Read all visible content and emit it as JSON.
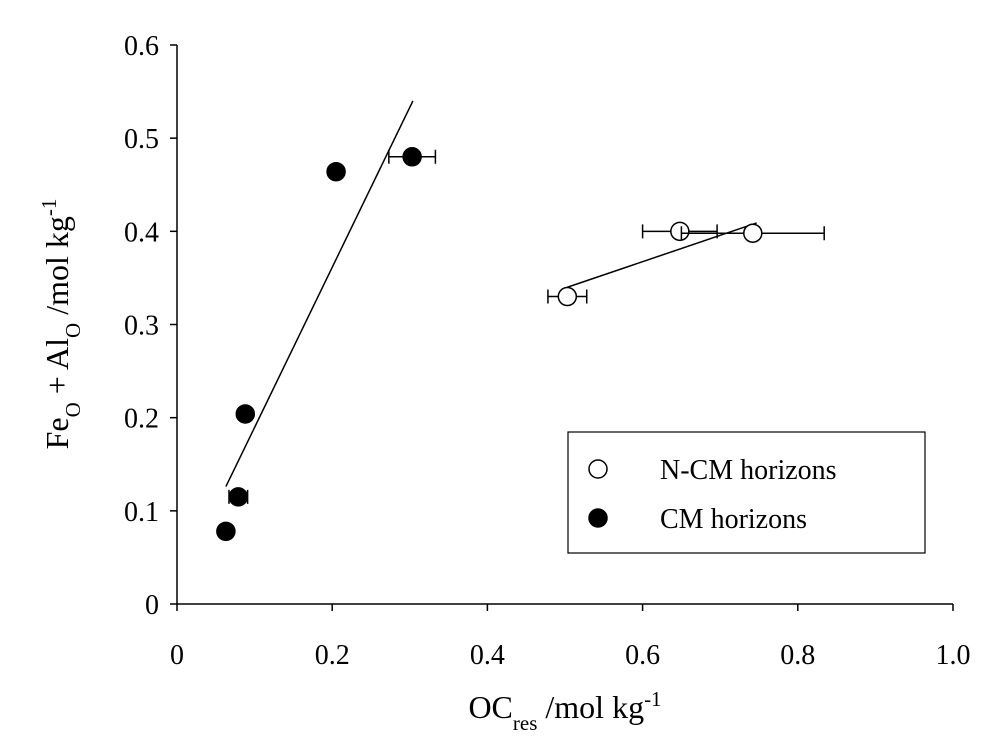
{
  "chart_data": {
    "type": "scatter",
    "xlabel": [
      "OC",
      "res",
      " /mol kg",
      "-1"
    ],
    "xlabel_shifts": [
      "base",
      "sub",
      "base",
      "super"
    ],
    "ylabel": [
      "Fe",
      "O",
      " + Al",
      "O",
      " /mol kg",
      "-1"
    ],
    "ylabel_shifts": [
      "base",
      "sub",
      "base",
      "sub",
      "base",
      "super"
    ],
    "xlim": [
      0,
      1
    ],
    "xticks": [
      0,
      0.2,
      0.4,
      0.6,
      0.8,
      {
        "value": 1,
        "label": "1.0"
      }
    ],
    "ylim": [
      0,
      0.6
    ],
    "yticks": [
      0,
      0.1,
      0.2,
      0.3,
      0.4,
      0.5,
      0.6
    ],
    "grid": false,
    "legend": "lower right",
    "series": [
      {
        "name": "N-CM horizons",
        "color": "#000000",
        "marker_fill": "#ffffff",
        "x": [
          0.503,
          0.648,
          0.742
        ],
        "values": [
          0.33,
          0.4,
          0.398
        ],
        "xerr": [
          0.025,
          0.048,
          0.092
        ],
        "fit": {
          "x": [
            0.503,
            0.747
          ],
          "y": [
            0.34,
            0.409
          ]
        }
      },
      {
        "name": "CM horizons",
        "color": "#000000",
        "marker_fill": "#000000",
        "x": [
          0.063,
          0.079,
          0.088,
          0.205,
          0.303
        ],
        "values": [
          0.078,
          0.115,
          0.204,
          0.464,
          0.48
        ],
        "xerr": [
          0.005,
          0.012,
          0.005,
          0.006,
          0.03
        ],
        "fit": {
          "x": [
            0.063,
            0.304
          ],
          "y": [
            0.126,
            0.54
          ]
        }
      }
    ]
  }
}
